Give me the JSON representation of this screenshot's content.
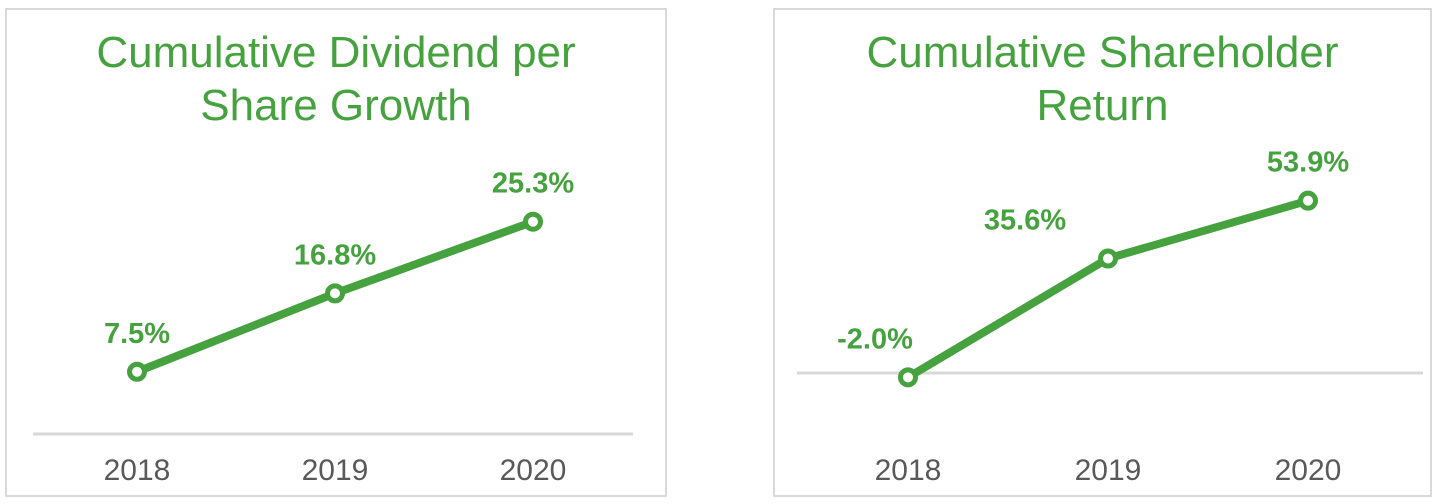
{
  "colors": {
    "accent_green": "#45a23e",
    "marker_fill": "#ffffff",
    "axis_label_gray": "#595959",
    "axis_line_gray": "#d9d9d9",
    "panel_border": "#d9d9d9",
    "panel_background": "#ffffff"
  },
  "chart_data": [
    {
      "type": "line",
      "title": "Cumulative Dividend per Share Growth",
      "categories": [
        "2018",
        "2019",
        "2020"
      ],
      "values": [
        7.5,
        16.8,
        25.3
      ],
      "point_labels": [
        "7.5%",
        "16.8%",
        "25.3%"
      ],
      "xlabel": "",
      "ylabel": "",
      "ylim": [
        0,
        30
      ],
      "baseline_value": 0,
      "grid": false,
      "legend": false,
      "marker_style": "open-circle",
      "line_color": "#45a23e"
    },
    {
      "type": "line",
      "title": "Cumulative Shareholder Return",
      "categories": [
        "2018",
        "2019",
        "2020"
      ],
      "values": [
        -2.0,
        35.6,
        53.9
      ],
      "point_labels": [
        "-2.0%",
        "35.6%",
        "53.9%"
      ],
      "xlabel": "",
      "ylabel": "",
      "ylim": [
        -15,
        65
      ],
      "baseline_value": 0,
      "grid": false,
      "legend": false,
      "marker_style": "open-circle",
      "line_color": "#45a23e"
    }
  ]
}
